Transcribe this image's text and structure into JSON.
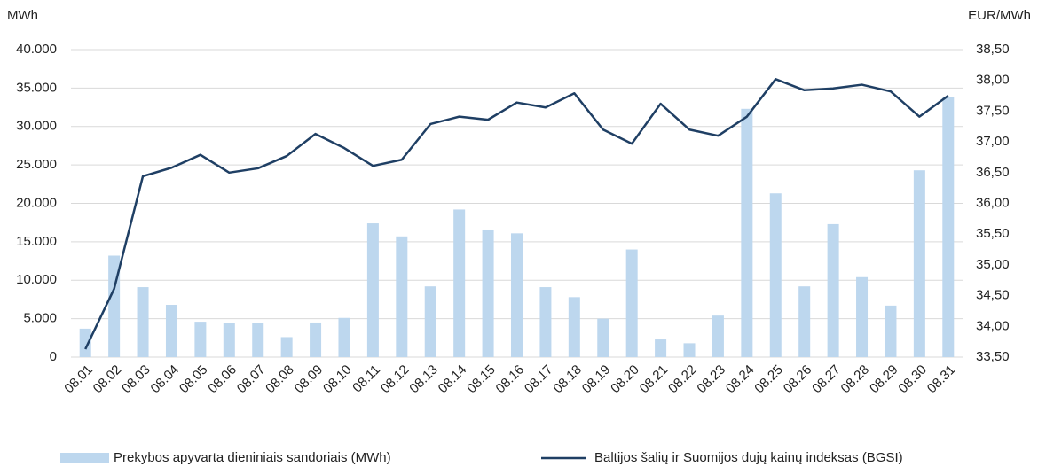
{
  "chart_data": {
    "type": "bar-line",
    "y_label": "MWh",
    "y2_label": "EUR/MWh",
    "categories": [
      "08.01",
      "08.02",
      "08.03",
      "08.04",
      "08.05",
      "08.06",
      "08.07",
      "08.08",
      "08.09",
      "08.10",
      "08.11",
      "08.12",
      "08.13",
      "08.14",
      "08.15",
      "08.16",
      "08.17",
      "08.18",
      "08.19",
      "08.20",
      "08.21",
      "08.22",
      "08.23",
      "08.24",
      "08.25",
      "08.26",
      "08.27",
      "08.28",
      "08.29",
      "08.30",
      "08.31"
    ],
    "series": [
      {
        "name": "Prekybos apyvarta dieniniais sandoriais (MWh)",
        "type": "bar",
        "color": "#bdd7ee",
        "values": [
          3700,
          13200,
          9100,
          6800,
          4600,
          4400,
          4400,
          2600,
          4500,
          5100,
          17400,
          15700,
          9200,
          19200,
          16600,
          16100,
          9100,
          7800,
          5000,
          14000,
          2300,
          1800,
          5400,
          32300,
          21300,
          9200,
          17300,
          10400,
          6700,
          24300,
          33800
        ]
      },
      {
        "name": "Baltijos šalių ir Suomijos dujų kainų indeksas (BGSI)",
        "type": "line",
        "axis": "y2",
        "color": "#1f3f64",
        "values": [
          33.63,
          34.61,
          36.44,
          36.58,
          36.79,
          36.5,
          36.57,
          36.77,
          37.13,
          36.9,
          36.61,
          36.71,
          37.29,
          37.41,
          37.36,
          37.64,
          37.56,
          37.79,
          37.2,
          36.97,
          37.62,
          37.2,
          37.1,
          37.41,
          38.02,
          37.84,
          37.87,
          37.93,
          37.82,
          37.41,
          37.75
        ]
      }
    ],
    "ylim": [
      0,
      40000
    ],
    "yticks": [
      0,
      {
        "value": 5000,
        "label": "5.000"
      },
      {
        "value": 10000,
        "label": "10.000"
      },
      {
        "value": 15000,
        "label": "15.000"
      },
      {
        "value": 20000,
        "label": "20.000"
      },
      {
        "value": 25000,
        "label": "25.000"
      },
      {
        "value": 30000,
        "label": "30.000"
      },
      {
        "value": 35000,
        "label": "35.000"
      },
      {
        "value": 40000,
        "label": "40.000"
      }
    ],
    "y2lim": [
      33.5,
      38.5
    ],
    "y2ticks": [
      {
        "value": 33.5,
        "label": "33,50"
      },
      {
        "value": 34,
        "label": "34,00"
      },
      {
        "value": 34.5,
        "label": "34,50"
      },
      {
        "value": 35,
        "label": "35,00"
      },
      {
        "value": 35.5,
        "label": "35,50"
      },
      {
        "value": 36,
        "label": "36,00"
      },
      {
        "value": 36.5,
        "label": "36,50"
      },
      {
        "value": 37,
        "label": "37,00"
      },
      {
        "value": 37.5,
        "label": "37,50"
      },
      {
        "value": 38,
        "label": "38,00"
      },
      {
        "value": 38.5,
        "label": "38,50"
      }
    ],
    "grid": true,
    "legend": "bottom"
  }
}
